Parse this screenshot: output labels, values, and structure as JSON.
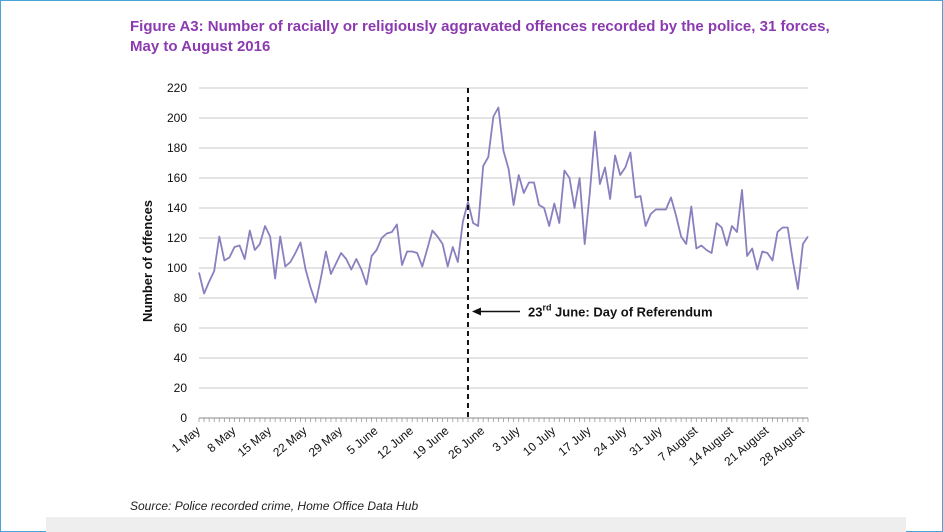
{
  "title": "Figure A3: Number of racially or religiously aggravated offences recorded by the police, 31 forces, May to August 2016",
  "source": "Source: Police recorded crime, Home Office Data Hub",
  "colors": {
    "line": "#8b7fbf",
    "title": "#8c3ab0",
    "grid": "#c8c8c8",
    "frame": "#4aa3d8"
  },
  "chart_data": {
    "type": "line",
    "title": "Figure A3: Number of racially or religiously aggravated offences recorded by the police, 31 forces, May to August 2016",
    "xlabel": "",
    "ylabel": "Number of offences",
    "ylim": [
      0,
      220
    ],
    "yticks": [
      0,
      20,
      40,
      60,
      80,
      100,
      120,
      140,
      160,
      180,
      200,
      220
    ],
    "grid": true,
    "x_start": "1 May 2016",
    "x_end": "31 August 2016",
    "x_ticks": [
      {
        "day": 1,
        "label": "1 May"
      },
      {
        "day": 8,
        "label": "8 May"
      },
      {
        "day": 15,
        "label": "15 May"
      },
      {
        "day": 22,
        "label": "22 May"
      },
      {
        "day": 29,
        "label": "29 May"
      },
      {
        "day": 36,
        "label": "5 June"
      },
      {
        "day": 43,
        "label": "12 June"
      },
      {
        "day": 50,
        "label": "19 June"
      },
      {
        "day": 57,
        "label": "26 June"
      },
      {
        "day": 64,
        "label": "3 July"
      },
      {
        "day": 71,
        "label": "10 July"
      },
      {
        "day": 78,
        "label": "17 July"
      },
      {
        "day": 85,
        "label": "24 July"
      },
      {
        "day": 92,
        "label": "31 July"
      },
      {
        "day": 99,
        "label": "7 August"
      },
      {
        "day": 106,
        "label": "14 August"
      },
      {
        "day": 113,
        "label": "21 August"
      },
      {
        "day": 120,
        "label": "28 August"
      }
    ],
    "series": [
      {
        "name": "",
        "values": [
          97,
          83,
          91,
          98,
          121,
          105,
          107,
          114,
          115,
          106,
          125,
          112,
          116,
          128,
          121,
          93,
          121,
          101,
          104,
          110,
          117,
          99,
          87,
          77,
          93,
          111,
          96,
          103,
          110,
          106,
          99,
          106,
          99,
          89,
          108,
          112,
          120,
          123,
          124,
          129,
          102,
          111,
          111,
          110,
          101,
          113,
          125,
          121,
          116,
          101,
          114,
          104,
          131,
          144,
          130,
          128,
          168,
          174,
          201,
          207,
          178,
          166,
          142,
          162,
          150,
          157,
          157,
          142,
          140,
          128,
          143,
          130,
          165,
          160,
          140,
          160,
          116,
          150,
          191,
          156,
          167,
          146,
          175,
          162,
          167,
          177,
          147,
          148,
          128,
          136,
          139,
          139,
          139,
          147,
          135,
          121,
          116,
          141,
          113,
          115,
          112,
          110,
          130,
          127,
          115,
          128,
          124,
          152,
          108,
          113,
          99,
          111,
          110,
          105,
          124,
          127,
          127,
          105,
          86,
          116,
          121
        ]
      }
    ],
    "annotations": [
      {
        "type": "vline",
        "day": 54,
        "style": "dashed"
      },
      {
        "type": "arrow-label",
        "text_main": "23",
        "text_sup": "rd",
        "text_rest": " June:  Day of Referendum",
        "y": 71
      }
    ]
  }
}
